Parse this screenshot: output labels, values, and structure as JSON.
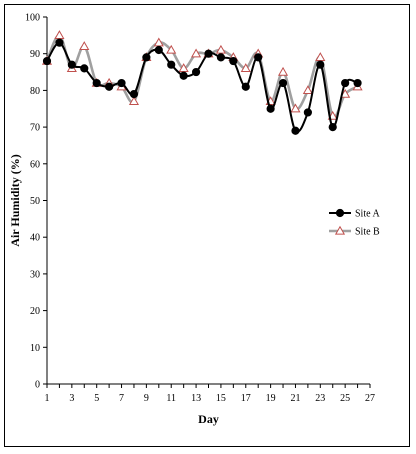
{
  "chart_data": {
    "type": "line",
    "title": "",
    "xlabel": "Day",
    "ylabel": "Air Humidity  (%)",
    "xlim": [
      1,
      27
    ],
    "ylim": [
      0,
      100
    ],
    "x_ticks": [
      1,
      3,
      5,
      7,
      9,
      11,
      13,
      15,
      17,
      19,
      21,
      23,
      25,
      27
    ],
    "y_ticks": [
      0,
      10,
      20,
      30,
      40,
      50,
      60,
      70,
      80,
      90,
      100
    ],
    "grid": false,
    "legend_position": "right",
    "x": [
      1,
      2,
      3,
      4,
      5,
      6,
      7,
      8,
      9,
      10,
      11,
      12,
      13,
      14,
      15,
      16,
      17,
      18,
      19,
      20,
      21,
      22,
      23,
      24,
      25,
      26
    ],
    "series": [
      {
        "name": "Site A",
        "color": "#000000",
        "marker": "circle",
        "values": [
          88,
          93,
          87,
          86,
          82,
          81,
          82,
          79,
          89,
          91,
          87,
          84,
          85,
          90,
          89,
          88,
          81,
          89,
          75,
          82,
          69,
          74,
          87,
          70,
          82,
          82
        ]
      },
      {
        "name": "Site B",
        "color": "#a0a0a0",
        "marker": "triangle",
        "values": [
          88,
          95,
          86,
          92,
          82,
          82,
          81,
          77,
          89,
          93,
          91,
          86,
          90,
          90,
          91,
          89,
          86,
          90,
          77,
          85,
          75,
          80,
          89,
          73,
          79,
          81
        ]
      }
    ]
  }
}
